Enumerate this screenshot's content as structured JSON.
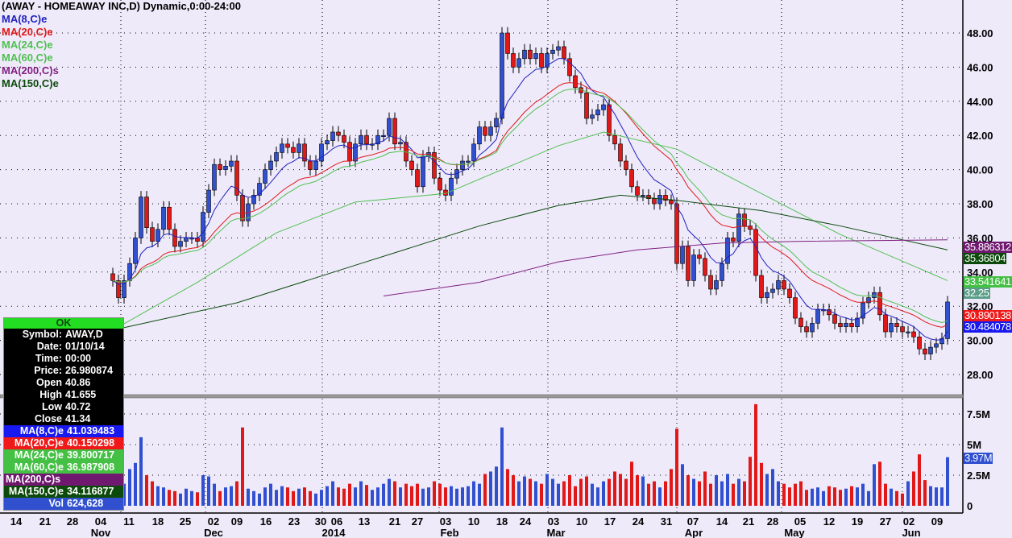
{
  "header": {
    "title": "(AWAY - HOMEAWAY INC,D) Dynamic,0:00-24:00"
  },
  "legend": [
    {
      "label": "MA(8,C)e",
      "color": "#2020C0"
    },
    {
      "label": "MA(20,C)e",
      "color": "#E01818"
    },
    {
      "label": "MA(24,C)e",
      "color": "#50C050"
    },
    {
      "label": "MA(60,C)e",
      "color": "#50C050"
    },
    {
      "label": "MA(200,C)s",
      "color": "#802080"
    },
    {
      "label": "MA(150,C)e",
      "color": "#0B4A0B"
    }
  ],
  "tooltip": {
    "status": "OK",
    "rows": [
      {
        "k": "Symbol:",
        "v": "AWAY,D"
      },
      {
        "k": "Date:",
        "v": "01/10/14"
      },
      {
        "k": "Time:",
        "v": "00:00"
      },
      {
        "k": "Price:",
        "v": "26.980874"
      },
      {
        "k": "Open",
        "v": "40.86"
      },
      {
        "k": "High",
        "v": "41.655"
      },
      {
        "k": "Low",
        "v": "40.72"
      },
      {
        "k": "Close",
        "v": "41.34"
      }
    ],
    "ma_rows": [
      {
        "k": "MA(8,C)e",
        "v": "41.039483",
        "bg": "#1818F0",
        "fg": "#ffffff"
      },
      {
        "k": "MA(20,C)e",
        "v": "40.150298",
        "bg": "#F01818",
        "fg": "#ffffff"
      },
      {
        "k": "MA(24,C)e",
        "v": "39.800717",
        "bg": "#44C044",
        "fg": "#ffffff"
      },
      {
        "k": "MA(60,C)e",
        "v": "36.987908",
        "bg": "#44C044",
        "fg": "#ffffff"
      },
      {
        "k": "MA(200,C)s",
        "v": "",
        "bg": "#701870",
        "fg": "#ffffff"
      },
      {
        "k": "MA(150,C)e",
        "v": "34.116877",
        "bg": "#0B4A0B",
        "fg": "#ffffff"
      },
      {
        "k": "Vol",
        "v": "624,628",
        "bg": "#3050D0",
        "fg": "#ffffff"
      }
    ]
  },
  "right_labels": [
    {
      "text": "35.886312",
      "bg": "#701870"
    },
    {
      "text": "35.36804",
      "bg": "#0B4A0B"
    },
    {
      "text": "33.541641",
      "bg": "#44C044"
    },
    {
      "text": "32.25",
      "bg": "#5A9E88"
    },
    {
      "text": "30.890138",
      "bg": "#F01818"
    },
    {
      "text": "30.484078",
      "bg": "#1818F0"
    },
    {
      "text": "3.97M",
      "bg": "#3050D0"
    }
  ],
  "chart_data": {
    "type": "candlestick",
    "price_axis": {
      "ticks": [
        28,
        30,
        32,
        34,
        36,
        38,
        40,
        42,
        44,
        46,
        48
      ],
      "labels": [
        "28.00",
        "30.00",
        "32.00",
        "34.00",
        "36.00",
        "38.00",
        "40.00",
        "42.00",
        "44.00",
        "46.00",
        "48.00"
      ],
      "range": [
        27.2,
        49.5
      ]
    },
    "volume_axis": {
      "ticks": [
        0,
        2.5,
        5,
        7.5
      ],
      "labels": [
        "0",
        "2.5M",
        "5M",
        "7.5M"
      ]
    },
    "x_labels": [
      "14",
      "21",
      "28",
      "04",
      "11",
      "18",
      "25",
      "02",
      "09",
      "16",
      "23",
      "30",
      "06",
      "13",
      "21",
      "27",
      "03",
      "10",
      "18",
      "24",
      "03",
      "10",
      "17",
      "24",
      "31",
      "07",
      "14",
      "21",
      "28",
      "05",
      "12",
      "19",
      "27",
      "02",
      "09"
    ],
    "month_labels": [
      "Nov",
      "Dec",
      "2014",
      "Feb",
      "Mar",
      "Apr",
      "May",
      "Jun"
    ],
    "up_color": "#3050D0",
    "down_color": "#E01818",
    "close": [
      33.5,
      32.5,
      33.5,
      34.5,
      36,
      38.4,
      36.6,
      35.8,
      36.5,
      37.8,
      36.5,
      35.5,
      35.8,
      36,
      36,
      35.8,
      37.5,
      38.8,
      40.3,
      40,
      40.2,
      40.5,
      38.5,
      37,
      38,
      38.5,
      39.2,
      40,
      40.5,
      41,
      41.5,
      41.3,
      41,
      41.5,
      40.5,
      40,
      40.5,
      41.5,
      41.7,
      42.2,
      42,
      41.6,
      40.5,
      41.5,
      42,
      41.5,
      41.5,
      42,
      42,
      43,
      41.5,
      41.6,
      40.5,
      40,
      39,
      40.8,
      41,
      39.5,
      38.8,
      38.5,
      39.5,
      40,
      40.5,
      40.5,
      41.5,
      42.5,
      42,
      42.5,
      43,
      48,
      46.8,
      46,
      46.5,
      47,
      46.5,
      46.8,
      46,
      46.8,
      47,
      47.2,
      46.5,
      45.5,
      44.8,
      44.5,
      43,
      43.2,
      43.5,
      43.8,
      42,
      41.5,
      40.5,
      40,
      39,
      38.5,
      38.5,
      38.3,
      38,
      38.5,
      38.2,
      38,
      34.5,
      35.5,
      33.5,
      35,
      34.8,
      33.8,
      33,
      33.5,
      34.5,
      36,
      35.8,
      37.4,
      36.7,
      36.5,
      33.8,
      32.5,
      32.8,
      33,
      33.5,
      33,
      32.5,
      31.3,
      30.8,
      30.5,
      31,
      31.8,
      31.8,
      31.5,
      31,
      30.8,
      31,
      30.8,
      31.3,
      32.2,
      32.5,
      32.8,
      31.5,
      30.5,
      31,
      30.8,
      30.5,
      30.5,
      30.2,
      29.5,
      29.2,
      29.6,
      29.8,
      30.1,
      32.25
    ],
    "volume_millions": [
      1.5,
      2.2,
      1.8,
      3.0,
      3.5,
      5.6,
      2.5,
      2.0,
      1.6,
      1.5,
      1.3,
      1.2,
      1.0,
      1.4,
      1.2,
      1.1,
      2.5,
      2.4,
      1.8,
      1.2,
      1.5,
      1.6,
      2.0,
      6.4,
      1.4,
      1.2,
      1.0,
      1.5,
      1.8,
      1.3,
      1.6,
      1.5,
      1.2,
      1.4,
      1.5,
      1.2,
      1.0,
      1.3,
      1.6,
      2.0,
      1.5,
      1.4,
      1.8,
      1.5,
      2.0,
      1.7,
      1.3,
      1.5,
      1.8,
      2.2,
      2.0,
      1.5,
      1.8,
      1.6,
      1.8,
      1.4,
      1.5,
      2.0,
      1.8,
      1.5,
      1.6,
      1.4,
      1.5,
      1.6,
      2.0,
      1.8,
      2.6,
      2.8,
      3.2,
      6.4,
      3.0,
      2.5,
      2.0,
      2.4,
      2.2,
      2.0,
      1.8,
      2.6,
      2.2,
      1.8,
      2.0,
      2.5,
      1.6,
      2.2,
      2.4,
      1.8,
      1.5,
      2.0,
      2.2,
      2.8,
      2.6,
      2.2,
      3.6,
      2.5,
      2.4,
      1.8,
      2.0,
      1.5,
      2.0,
      3.0,
      6.3,
      3.4,
      2.5,
      2.2,
      2.0,
      2.8,
      1.8,
      2.5,
      2.0,
      2.6,
      1.8,
      2.2,
      2.0,
      4.0,
      8.3,
      3.5,
      2.6,
      3.0,
      2.0,
      1.8,
      1.5,
      1.8,
      2.0,
      1.3,
      1.4,
      1.5,
      1.2,
      1.6,
      1.5,
      1.3,
      1.4,
      1.6,
      1.5,
      1.8,
      1.2,
      3.4,
      3.6,
      1.8,
      1.4,
      1.2,
      1.0,
      2.0,
      2.8,
      4.2,
      2.1,
      1.6,
      1.5,
      1.5,
      3.97
    ],
    "moving_averages": [
      {
        "name": "MA(8,C)e",
        "period": 8,
        "kind": "ema",
        "color": "#2020C0"
      },
      {
        "name": "MA(20,C)e",
        "period": 20,
        "kind": "ema",
        "color": "#E01818"
      },
      {
        "name": "MA(24,C)e",
        "period": 24,
        "kind": "ema",
        "color": "#50C050"
      },
      {
        "name": "MA(60,C)e",
        "color": "#50C050",
        "points": [
          [
            1,
            30.6
          ],
          [
            16,
            33.4
          ],
          [
            30,
            36.3
          ],
          [
            44,
            38.1
          ],
          [
            60,
            38.6
          ],
          [
            80,
            41.4
          ],
          [
            88,
            42.2
          ],
          [
            101,
            41.2
          ],
          [
            116,
            38.6
          ],
          [
            130,
            36.2
          ],
          [
            149,
            33.5
          ]
        ]
      },
      {
        "name": "MA(150,C)e",
        "color": "#0B4A0B",
        "points": [
          [
            1,
            30.6
          ],
          [
            23,
            32.2
          ],
          [
            44,
            34.4
          ],
          [
            66,
            36.7
          ],
          [
            80,
            37.9
          ],
          [
            91,
            38.5
          ],
          [
            101,
            38.2
          ],
          [
            116,
            37.6
          ],
          [
            130,
            36.7
          ],
          [
            149,
            35.3
          ]
        ]
      },
      {
        "name": "MA(200,C)s",
        "color": "#802080",
        "points": [
          [
            49,
            32.6
          ],
          [
            66,
            33.4
          ],
          [
            80,
            34.6
          ],
          [
            94,
            35.3
          ],
          [
            109,
            35.7
          ],
          [
            123,
            35.8
          ],
          [
            149,
            35.89
          ]
        ]
      }
    ]
  }
}
